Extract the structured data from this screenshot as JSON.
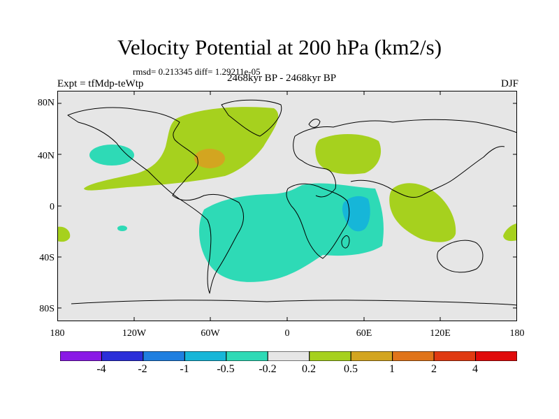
{
  "title": "Velocity Potential at 200 hPa (km2/s)",
  "stats": "rmsd= 0.213345 diff= 1.29211e-05",
  "experiment": "Expt = tfMdp-teWtp",
  "period": "2468kyr BP - 2468kyr BP",
  "season": "DJF",
  "map": {
    "projection": "Cylindrical Equidistant",
    "background_color": "#e6e6e6",
    "lat_labels": [
      "80N",
      "40N",
      "0",
      "40S",
      "80S"
    ],
    "lon_labels": [
      "180",
      "120W",
      "60W",
      "0",
      "60E",
      "120E",
      "180"
    ],
    "anomaly_regions": [
      {
        "name": "north-america-atlantic-positive",
        "level": "0.2 to 0.5",
        "color": "#a6d11e"
      },
      {
        "name": "eastern-us-positive-core",
        "level": "0.5 to 1",
        "color": "#d3a520"
      },
      {
        "name": "northeast-pacific-negative",
        "level": "-0.5 to -0.2",
        "color": "#2edab6"
      },
      {
        "name": "eurasia-positive",
        "level": "0.2 to 0.5",
        "color": "#a6d11e"
      },
      {
        "name": "indonesia-positive",
        "level": "0.2 to 0.5",
        "color": "#a6d11e"
      },
      {
        "name": "africa-south-atlantic-negative",
        "level": "-0.5 to -0.2",
        "color": "#2edab6"
      },
      {
        "name": "east-africa-negative-core",
        "level": "-1 to -0.5",
        "color": "#16b6d8"
      },
      {
        "name": "dateline-west-positive",
        "level": "0.2 to 0.5",
        "color": "#a6d11e"
      },
      {
        "name": "dateline-east-positive",
        "level": "0.2 to 0.5",
        "color": "#a6d11e"
      },
      {
        "name": "south-pacific-negative-spot",
        "level": "-0.5 to -0.2",
        "color": "#2edab6"
      }
    ]
  },
  "colorbar": {
    "labels": [
      "-4",
      "-2",
      "-1",
      "-0.5",
      "-0.2",
      "0.2",
      "0.5",
      "1",
      "2",
      "4"
    ],
    "colors": [
      "#8a1ae6",
      "#2b2fd9",
      "#1f7fe0",
      "#16b6d8",
      "#2edab6",
      "#e6e6e6",
      "#a6d11e",
      "#d3a520",
      "#e0741a",
      "#e03a12",
      "#e00a0a"
    ]
  }
}
